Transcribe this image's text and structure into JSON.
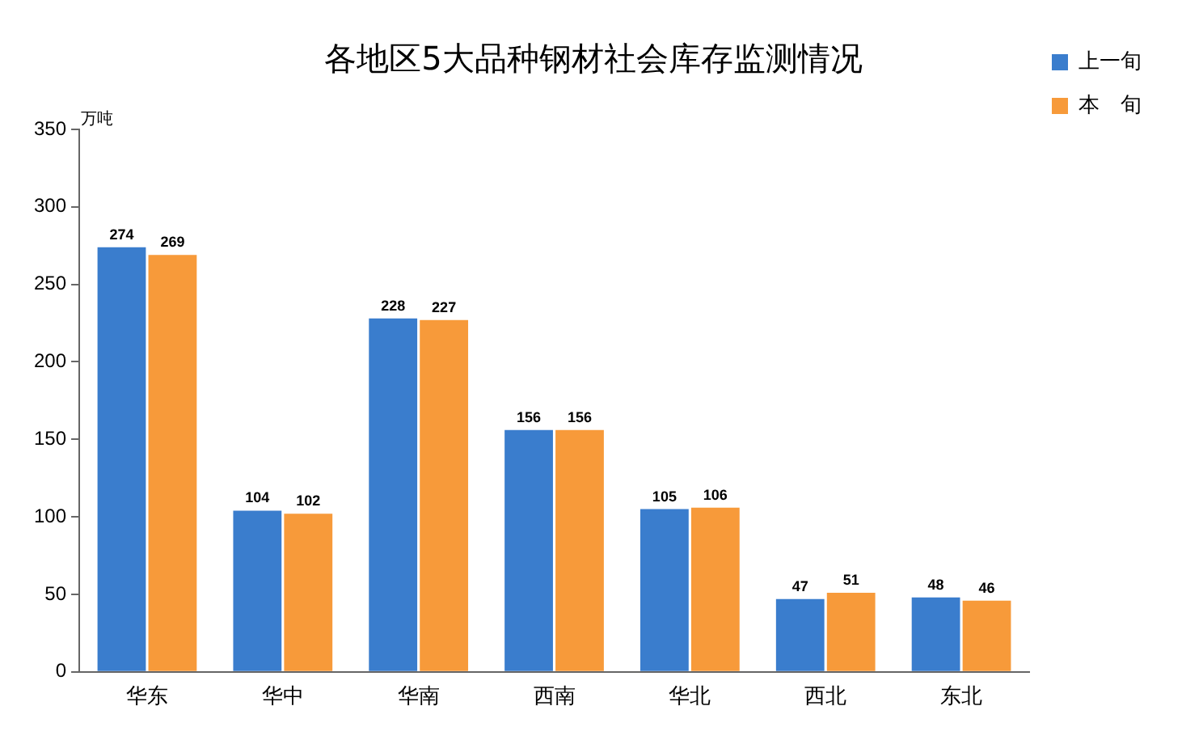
{
  "chart_data": {
    "type": "bar",
    "title": "各地区5大品种钢材社会库存监测情况",
    "ylabel": "万吨",
    "categories": [
      "华东",
      "华中",
      "华南",
      "西南",
      "华北",
      "西北",
      "东北"
    ],
    "series": [
      {
        "name": "上一旬",
        "color": "#3a7dcd",
        "values": [
          274,
          104,
          228,
          156,
          105,
          47,
          48
        ]
      },
      {
        "name": "本　旬",
        "color": "#f79a3a",
        "values": [
          269,
          102,
          227,
          156,
          106,
          51,
          46
        ]
      }
    ],
    "ylim": [
      0,
      350
    ],
    "yticks": [
      0,
      50,
      100,
      150,
      200,
      250,
      300,
      350
    ],
    "grid": false,
    "legend": "right",
    "data_labels": true
  }
}
